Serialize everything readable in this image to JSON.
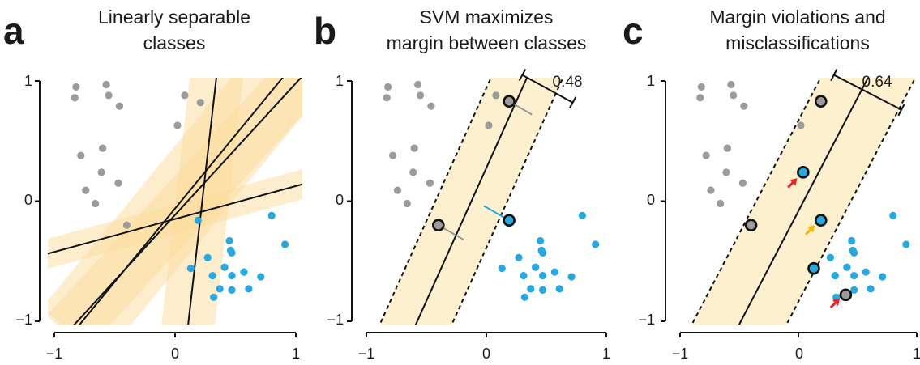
{
  "chart_data": [
    {
      "type": "scatter",
      "letter": "a",
      "title_lines": [
        "Linearly separable",
        "classes"
      ],
      "xlim": [
        -1,
        1
      ],
      "ylim": [
        -1,
        1
      ],
      "xticks": [
        "−1",
        "0",
        "1"
      ],
      "yticks": [
        "1",
        "0",
        "−1"
      ],
      "grid": false,
      "series": [
        {
          "color": "#9b9b9b",
          "points": [
            [
              -0.82,
              0.95
            ],
            [
              -0.83,
              0.86
            ],
            [
              -0.57,
              0.97
            ],
            [
              -0.55,
              0.88
            ],
            [
              -0.46,
              0.79
            ],
            [
              0.08,
              0.88
            ],
            [
              0.21,
              0.82
            ],
            [
              -0.66,
              -0.02
            ],
            [
              0.02,
              0.63
            ],
            [
              -0.78,
              0.38
            ],
            [
              -0.6,
              0.44
            ],
            [
              -0.61,
              0.24
            ],
            [
              -0.47,
              0.15
            ],
            [
              -0.74,
              0.09
            ],
            [
              -0.4,
              -0.2
            ]
          ]
        },
        {
          "color": "#29a8e0",
          "points": [
            [
              0.19,
              -0.16
            ],
            [
              0.8,
              -0.12
            ],
            [
              0.45,
              -0.33
            ],
            [
              0.46,
              -0.41
            ],
            [
              0.47,
              -0.43
            ],
            [
              0.91,
              -0.36
            ],
            [
              0.13,
              -0.56
            ],
            [
              0.27,
              -0.47
            ],
            [
              0.41,
              -0.55
            ],
            [
              0.31,
              -0.62
            ],
            [
              0.47,
              -0.62
            ],
            [
              0.57,
              -0.59
            ],
            [
              0.71,
              -0.63
            ],
            [
              0.37,
              -0.73
            ],
            [
              0.47,
              -0.74
            ],
            [
              0.61,
              -0.73
            ],
            [
              0.32,
              -0.8
            ]
          ]
        }
      ],
      "lines": [
        [
          -1.1,
          -0.45,
          1.2,
          0.18
        ],
        [
          -0.85,
          -1.1,
          0.95,
          1.1
        ],
        [
          0.1,
          -1.1,
          0.35,
          1.1
        ],
        [
          -0.9,
          -1.1,
          1.2,
          1.2
        ]
      ],
      "bands": [
        [
          -1.1,
          -0.45,
          1.2,
          0.18,
          0.12
        ],
        [
          -0.85,
          -1.1,
          0.95,
          1.1,
          0.33
        ],
        [
          0.1,
          -1.1,
          0.35,
          1.1,
          0.22
        ],
        [
          -0.9,
          -1.1,
          1.2,
          1.2,
          0.22
        ]
      ]
    },
    {
      "type": "scatter",
      "letter": "b",
      "title_lines": [
        "SVM maximizes",
        "margin between classes"
      ],
      "xlim": [
        -1,
        1
      ],
      "ylim": [
        -1,
        1
      ],
      "xticks": [
        "−1",
        "0",
        "1"
      ],
      "yticks": [
        "1",
        "0",
        "−1"
      ],
      "grid": false,
      "margin_label": "0.48",
      "series": [
        {
          "color": "#9b9b9b",
          "points": [
            [
              -0.82,
              0.95
            ],
            [
              -0.83,
              0.86
            ],
            [
              -0.57,
              0.97
            ],
            [
              -0.55,
              0.88
            ],
            [
              -0.46,
              0.79
            ],
            [
              0.08,
              0.88
            ],
            [
              0.21,
              0.82
            ],
            [
              -0.66,
              -0.02
            ],
            [
              0.02,
              0.63
            ],
            [
              -0.78,
              0.38
            ],
            [
              -0.6,
              0.44
            ],
            [
              -0.61,
              0.24
            ],
            [
              -0.47,
              0.15
            ],
            [
              -0.74,
              0.09
            ],
            [
              -0.4,
              -0.2
            ]
          ]
        },
        {
          "color": "#29a8e0",
          "points": [
            [
              0.19,
              -0.16
            ],
            [
              0.8,
              -0.12
            ],
            [
              0.45,
              -0.33
            ],
            [
              0.46,
              -0.41
            ],
            [
              0.47,
              -0.43
            ],
            [
              0.91,
              -0.36
            ],
            [
              0.13,
              -0.56
            ],
            [
              0.27,
              -0.47
            ],
            [
              0.41,
              -0.55
            ],
            [
              0.31,
              -0.62
            ],
            [
              0.47,
              -0.62
            ],
            [
              0.57,
              -0.59
            ],
            [
              0.71,
              -0.63
            ],
            [
              0.37,
              -0.73
            ],
            [
              0.47,
              -0.74
            ],
            [
              0.61,
              -0.73
            ],
            [
              0.32,
              -0.8
            ]
          ]
        }
      ],
      "support_vectors": [
        {
          "fill": "#9b9b9b",
          "point": [
            0.19,
            0.83
          ]
        },
        {
          "fill": "#9b9b9b",
          "point": [
            -0.4,
            -0.2
          ]
        },
        {
          "fill": "#29a8e0",
          "point": [
            0.19,
            -0.16
          ]
        }
      ],
      "boundary": [
        [
          -0.63,
          -1.12
        ],
        [
          0.34,
          1.03
        ]
      ],
      "margin_lower": [
        [
          -0.93,
          -1.12
        ],
        [
          0.04,
          1.03
        ]
      ],
      "margin_upper": [
        [
          -0.33,
          -1.12
        ],
        [
          0.64,
          1.03
        ]
      ],
      "connectors": [
        {
          "from": [
            0.19,
            0.83
          ],
          "to": [
            0.38,
            0.72
          ],
          "color": "#999999"
        },
        {
          "from": [
            -0.4,
            -0.2
          ],
          "to": [
            -0.19,
            -0.32
          ],
          "color": "#999999"
        },
        {
          "from": [
            0.19,
            -0.16
          ],
          "to": [
            -0.02,
            -0.04
          ],
          "color": "#29a8e0"
        }
      ],
      "dimension": {
        "from": [
          0.3,
          1.05
        ],
        "to": [
          0.72,
          0.82
        ]
      }
    },
    {
      "type": "scatter",
      "letter": "c",
      "title_lines": [
        "Margin violations and",
        "misclassifications"
      ],
      "xlim": [
        -1,
        1
      ],
      "ylim": [
        -1,
        1
      ],
      "xticks": [
        "−1",
        "0",
        "1"
      ],
      "yticks": [
        "1",
        "0",
        "−1"
      ],
      "grid": false,
      "margin_label": "0.64",
      "series": [
        {
          "color": "#9b9b9b",
          "points": [
            [
              -0.82,
              0.95
            ],
            [
              -0.83,
              0.86
            ],
            [
              -0.57,
              0.97
            ],
            [
              -0.55,
              0.88
            ],
            [
              -0.46,
              0.79
            ],
            [
              -0.66,
              -0.02
            ],
            [
              0.02,
              0.63
            ],
            [
              -0.78,
              0.38
            ],
            [
              -0.6,
              0.44
            ],
            [
              -0.61,
              0.24
            ],
            [
              -0.47,
              0.15
            ],
            [
              -0.74,
              0.09
            ]
          ]
        },
        {
          "color": "#29a8e0",
          "points": [
            [
              0.8,
              -0.12
            ],
            [
              0.45,
              -0.33
            ],
            [
              0.46,
              -0.41
            ],
            [
              0.47,
              -0.43
            ],
            [
              0.91,
              -0.36
            ],
            [
              0.27,
              -0.47
            ],
            [
              0.41,
              -0.55
            ],
            [
              0.31,
              -0.62
            ],
            [
              0.47,
              -0.62
            ],
            [
              0.57,
              -0.59
            ],
            [
              0.71,
              -0.63
            ],
            [
              0.47,
              -0.74
            ],
            [
              0.61,
              -0.73
            ],
            [
              0.32,
              -0.8
            ]
          ]
        }
      ],
      "support_vectors": [
        {
          "fill": "#9b9b9b",
          "point": [
            0.19,
            0.83
          ]
        },
        {
          "fill": "#9b9b9b",
          "point": [
            -0.4,
            -0.2
          ]
        },
        {
          "fill": "#29a8e0",
          "point": [
            0.04,
            0.24
          ]
        },
        {
          "fill": "#29a8e0",
          "point": [
            0.19,
            -0.16
          ]
        },
        {
          "fill": "#29a8e0",
          "point": [
            0.13,
            -0.56
          ]
        },
        {
          "fill": "#9b9b9b",
          "point": [
            0.4,
            -0.78
          ]
        }
      ],
      "boundary": [
        [
          -0.55,
          -1.12
        ],
        [
          0.59,
          1.03
        ]
      ],
      "margin_lower": [
        [
          -0.95,
          -1.12
        ],
        [
          0.19,
          1.03
        ]
      ],
      "margin_upper": [
        [
          -0.15,
          -1.12
        ],
        [
          0.99,
          1.03
        ]
      ],
      "arrows": [
        {
          "tip": [
            -0.01,
            0.19
          ],
          "color": "#e8202a"
        },
        {
          "tip": [
            0.14,
            -0.2
          ],
          "color": "#f5b800"
        },
        {
          "tip": [
            0.35,
            -0.81
          ],
          "color": "#e8202a"
        }
      ],
      "dimension": {
        "from": [
          0.3,
          1.05
        ],
        "to": [
          0.87,
          0.76
        ]
      }
    }
  ]
}
